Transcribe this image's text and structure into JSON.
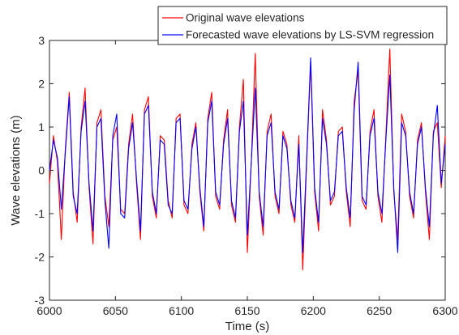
{
  "chart_data": {
    "type": "line",
    "xlabel": "Time (s)",
    "ylabel": "Wave elevations (m)",
    "xlim": [
      6000,
      6300
    ],
    "ylim": [
      -3,
      3
    ],
    "xticks": [
      6000,
      6050,
      6100,
      6150,
      6200,
      6250,
      6300
    ],
    "yticks": [
      -3,
      -2,
      -1,
      0,
      1,
      2,
      3
    ],
    "xtick_labels": [
      "6000",
      "6050",
      "6100",
      "6150",
      "6200",
      "6250",
      "6300"
    ],
    "ytick_labels": [
      "-3",
      "-2",
      "-1",
      "0",
      "1",
      "2",
      "3"
    ],
    "grid": false,
    "legend_position": "top-right",
    "x": [
      6000,
      6003,
      6006,
      6009,
      6012,
      6015,
      6018,
      6021,
      6024,
      6027,
      6030,
      6033,
      6036,
      6039,
      6042,
      6045,
      6048,
      6051,
      6054,
      6057,
      6060,
      6063,
      6066,
      6069,
      6072,
      6075,
      6078,
      6081,
      6084,
      6087,
      6090,
      6093,
      6096,
      6099,
      6102,
      6105,
      6108,
      6111,
      6114,
      6117,
      6120,
      6123,
      6126,
      6129,
      6132,
      6135,
      6138,
      6141,
      6144,
      6147,
      6150,
      6153,
      6156,
      6159,
      6162,
      6165,
      6168,
      6171,
      6174,
      6177,
      6180,
      6183,
      6186,
      6189,
      6192,
      6195,
      6198,
      6201,
      6204,
      6207,
      6210,
      6213,
      6216,
      6219,
      6222,
      6225,
      6228,
      6231,
      6234,
      6237,
      6240,
      6243,
      6246,
      6249,
      6252,
      6255,
      6258,
      6261,
      6264,
      6267,
      6270,
      6273,
      6276,
      6279,
      6282,
      6285,
      6288,
      6291,
      6294,
      6297,
      6300
    ],
    "series": [
      {
        "name": "Original wave elevations",
        "color": "#ff0000",
        "values": [
          -0.3,
          0.8,
          0.2,
          -1.6,
          0.5,
          1.8,
          -0.5,
          -1.2,
          1.0,
          1.9,
          -0.4,
          -1.7,
          1.1,
          1.4,
          -0.6,
          -1.3,
          0.7,
          1.0,
          -0.9,
          -1.0,
          0.6,
          1.3,
          -0.3,
          -1.6,
          1.4,
          1.7,
          -0.6,
          -1.1,
          0.8,
          0.7,
          -0.7,
          -1.1,
          1.2,
          1.3,
          -0.8,
          -1.0,
          0.6,
          1.1,
          -0.5,
          -1.4,
          1.2,
          1.8,
          -0.6,
          -0.9,
          0.7,
          1.4,
          -0.8,
          -1.2,
          1.0,
          2.1,
          -1.9,
          0.2,
          2.7,
          -0.6,
          -1.5,
          0.9,
          1.3,
          -0.6,
          -1.0,
          0.9,
          0.6,
          -0.8,
          -1.2,
          0.8,
          -2.3,
          0.2,
          2.5,
          -0.5,
          -1.4,
          1.4,
          0.7,
          -0.8,
          -0.6,
          0.9,
          1.0,
          -0.5,
          -1.3,
          1.6,
          2.3,
          -0.7,
          -0.9,
          0.9,
          1.4,
          -0.6,
          -1.2,
          0.8,
          2.8,
          -0.5,
          -1.6,
          1.3,
          0.9,
          -0.6,
          -1.1,
          0.7,
          1.1,
          -0.5,
          -1.6,
          0.9,
          1.1,
          -0.4,
          0.8
        ]
      },
      {
        "name": "Forecasted wave elevations by LS-SVM regression",
        "color": "#0000ff",
        "values": [
          0.0,
          0.7,
          0.3,
          -0.9,
          0.4,
          1.7,
          -0.6,
          -1.0,
          0.9,
          1.6,
          -0.3,
          -1.4,
          1.0,
          1.2,
          -0.7,
          -1.8,
          0.8,
          1.3,
          -1.0,
          -1.1,
          0.5,
          1.1,
          -0.2,
          -1.4,
          1.3,
          1.5,
          -0.5,
          -1.0,
          0.7,
          0.6,
          -0.8,
          -1.0,
          1.1,
          1.2,
          -0.7,
          -0.9,
          0.5,
          1.0,
          -0.4,
          -1.3,
          1.1,
          1.6,
          -0.5,
          -0.8,
          0.6,
          1.2,
          -0.7,
          -1.1,
          0.9,
          1.6,
          -1.5,
          0.2,
          1.9,
          -0.5,
          -1.3,
          0.8,
          1.1,
          -0.5,
          -0.9,
          0.8,
          0.5,
          -0.7,
          -1.1,
          0.6,
          -1.9,
          0.3,
          2.6,
          -0.4,
          -1.2,
          1.2,
          0.6,
          -0.7,
          -0.5,
          0.8,
          0.9,
          -0.4,
          -1.1,
          1.4,
          2.5,
          -0.6,
          -0.8,
          0.8,
          1.2,
          -0.5,
          -1.0,
          0.7,
          2.2,
          -0.4,
          -1.9,
          1.1,
          0.8,
          -0.5,
          -1.0,
          0.6,
          1.0,
          -0.4,
          -1.3,
          0.8,
          1.5,
          -0.3,
          0.6
        ]
      }
    ]
  }
}
